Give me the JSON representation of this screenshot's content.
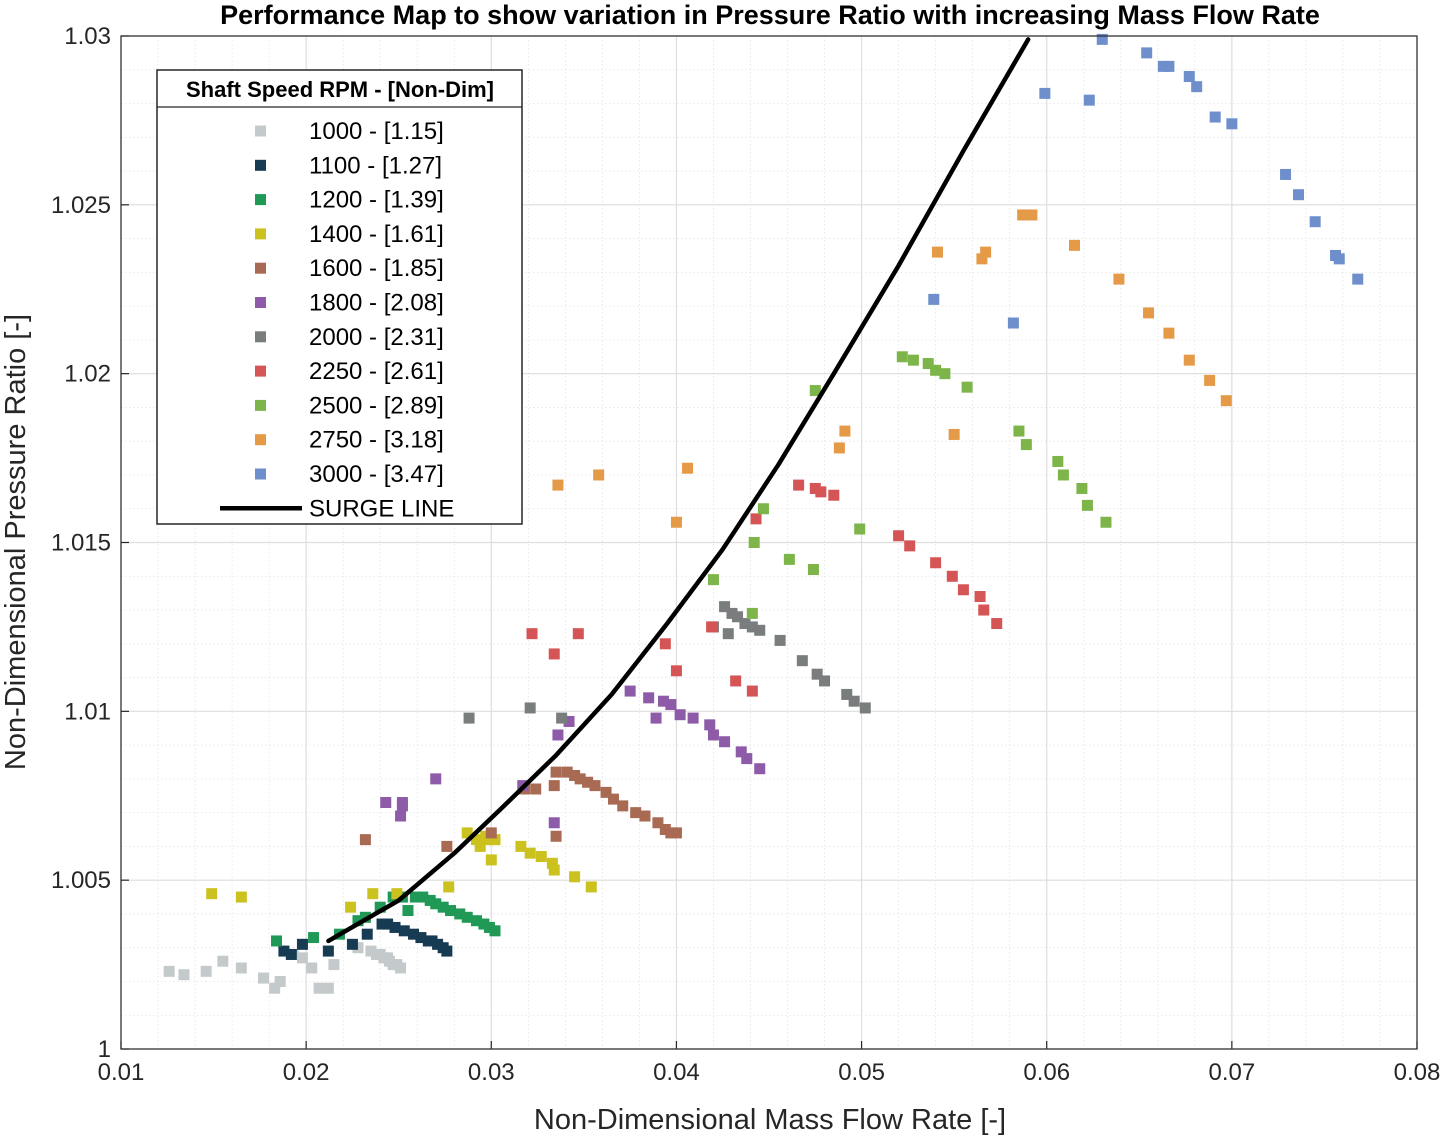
{
  "chart_data": {
    "type": "scatter",
    "title": "Performance Map to show variation in Pressure Ratio with increasing Mass Flow Rate",
    "xlabel": "Non-Dimensional Mass Flow Rate [-]",
    "ylabel": "Non-Dimensional Pressure Ratio [-]",
    "xlim": [
      0.01,
      0.08
    ],
    "ylim": [
      1.0,
      1.03
    ],
    "xticks": [
      0.01,
      0.02,
      0.03,
      0.04,
      0.05,
      0.06,
      0.07,
      0.08
    ],
    "xtick_labels": [
      "0.01",
      "0.02",
      "0.03",
      "0.04",
      "0.05",
      "0.06",
      "0.07",
      "0.08"
    ],
    "yticks": [
      1.0,
      1.005,
      1.01,
      1.015,
      1.02,
      1.025,
      1.03
    ],
    "ytick_labels": [
      "1",
      "1.005",
      "1.01",
      "1.015",
      "1.02",
      "1.025",
      "1.03"
    ],
    "grid": true,
    "minor_grid": true,
    "legend": {
      "title": "Shaft Speed RPM - [Non-Dim]",
      "location": "top-left"
    },
    "series": [
      {
        "name": "1000 - [1.15]",
        "color": "#c4cacb",
        "marker": "square",
        "x": [
          0.0126,
          0.0134,
          0.0146,
          0.0155,
          0.0165,
          0.0177,
          0.0183,
          0.0186,
          0.0193,
          0.0198,
          0.0203,
          0.0207,
          0.0212,
          0.0215,
          0.0228,
          0.0235,
          0.0238,
          0.024,
          0.0242,
          0.0244,
          0.0245,
          0.0247,
          0.0249,
          0.0251
        ],
        "y": [
          1.0023,
          1.0022,
          1.0023,
          1.0026,
          1.0024,
          1.0021,
          1.0018,
          1.002,
          1.0028,
          1.0027,
          1.0024,
          1.0018,
          1.0018,
          1.0025,
          1.003,
          1.0029,
          1.0028,
          1.0028,
          1.0027,
          1.0027,
          1.0026,
          1.0025,
          1.0025,
          1.0024
        ]
      },
      {
        "name": "1100 - [1.27]",
        "color": "#163b52",
        "marker": "square",
        "x": [
          0.0188,
          0.0192,
          0.0198,
          0.0212,
          0.0225,
          0.0233,
          0.0241,
          0.0244,
          0.0248,
          0.0253,
          0.0258,
          0.0262,
          0.0266,
          0.0268,
          0.0271,
          0.0274,
          0.0276
        ],
        "y": [
          1.0029,
          1.0028,
          1.0031,
          1.0029,
          1.0031,
          1.0034,
          1.0037,
          1.0037,
          1.0036,
          1.0035,
          1.0034,
          1.0033,
          1.0032,
          1.0032,
          1.0031,
          1.003,
          1.0029
        ]
      },
      {
        "name": "1200 - [1.39]",
        "color": "#1f9955",
        "marker": "square",
        "x": [
          0.0184,
          0.0204,
          0.0218,
          0.0228,
          0.0232,
          0.024,
          0.0247,
          0.0252,
          0.0255,
          0.0259,
          0.0263,
          0.0267,
          0.027,
          0.0274,
          0.0278,
          0.0283,
          0.0287,
          0.0292,
          0.0296,
          0.0299,
          0.0302
        ],
        "y": [
          1.0032,
          1.0033,
          1.0034,
          1.0038,
          1.0039,
          1.0042,
          1.0045,
          1.0045,
          1.0041,
          1.0045,
          1.0045,
          1.0044,
          1.0043,
          1.0042,
          1.0041,
          1.004,
          1.0039,
          1.0038,
          1.0037,
          1.0036,
          1.0035
        ],
        "drawn_over": true
      },
      {
        "name": "1400 - [1.61]",
        "color": "#cbc11f",
        "marker": "square",
        "x": [
          0.0149,
          0.0165,
          0.0224,
          0.0236,
          0.0249,
          0.0277,
          0.0287,
          0.0292,
          0.0294,
          0.0297,
          0.0299,
          0.0302,
          0.0316,
          0.0321,
          0.0327,
          0.0333,
          0.0334,
          0.0345,
          0.0354,
          0.03
        ],
        "y": [
          1.0046,
          1.0045,
          1.0042,
          1.0046,
          1.0046,
          1.0048,
          1.0064,
          1.0062,
          1.006,
          1.0063,
          1.0062,
          1.0062,
          1.006,
          1.0058,
          1.0057,
          1.0055,
          1.0053,
          1.0051,
          1.0048,
          1.0056
        ]
      },
      {
        "name": "1600 - [1.85]",
        "color": "#a86a52",
        "marker": "square",
        "x": [
          0.0232,
          0.0276,
          0.03,
          0.0318,
          0.0324,
          0.0334,
          0.0335,
          0.0335,
          0.0341,
          0.0345,
          0.0348,
          0.0352,
          0.0356,
          0.0362,
          0.0366,
          0.0371,
          0.0378,
          0.0383,
          0.039,
          0.0394,
          0.0397,
          0.04
        ],
        "y": [
          1.0062,
          1.006,
          1.0064,
          1.0077,
          1.0077,
          1.0078,
          1.0082,
          1.0063,
          1.0082,
          1.0081,
          1.008,
          1.0079,
          1.0078,
          1.0076,
          1.0074,
          1.0072,
          1.007,
          1.0069,
          1.0067,
          1.0065,
          1.0064,
          1.0064
        ]
      },
      {
        "name": "1800 - [2.08]",
        "color": "#8e5ba9",
        "marker": "square",
        "x": [
          0.0243,
          0.0252,
          0.0252,
          0.0251,
          0.027,
          0.0334,
          0.0336,
          0.0342,
          0.0317,
          0.0375,
          0.0385,
          0.0389,
          0.0393,
          0.0397,
          0.0402,
          0.0409,
          0.0418,
          0.042,
          0.0426,
          0.0435,
          0.0438,
          0.0445
        ],
        "y": [
          1.0073,
          1.0073,
          1.0072,
          1.0069,
          1.008,
          1.0067,
          1.0093,
          1.0097,
          1.0078,
          1.0106,
          1.0104,
          1.0098,
          1.0103,
          1.0102,
          1.0099,
          1.0098,
          1.0096,
          1.0093,
          1.0091,
          1.0088,
          1.0086,
          1.0083
        ]
      },
      {
        "name": "2000 - [2.31]",
        "color": "#7a7d7d",
        "marker": "square",
        "x": [
          0.0288,
          0.0321,
          0.0338,
          0.042,
          0.0426,
          0.0428,
          0.043,
          0.0433,
          0.0437,
          0.0441,
          0.0445,
          0.0456,
          0.0468,
          0.0476,
          0.048,
          0.0492,
          0.0496,
          0.0502
        ],
        "y": [
          1.0098,
          1.0101,
          1.0098,
          1.0125,
          1.0131,
          1.0123,
          1.0129,
          1.0128,
          1.0126,
          1.0125,
          1.0124,
          1.0121,
          1.0115,
          1.0111,
          1.0109,
          1.0105,
          1.0103,
          1.0101
        ]
      },
      {
        "name": "2250 - [2.61]",
        "color": "#d55556",
        "marker": "square",
        "x": [
          0.0322,
          0.0334,
          0.0347,
          0.0394,
          0.04,
          0.0419,
          0.0432,
          0.0441,
          0.0443,
          0.0466,
          0.0475,
          0.0478,
          0.0485,
          0.052,
          0.0526,
          0.054,
          0.0549,
          0.0555,
          0.0564,
          0.0566,
          0.0573
        ],
        "y": [
          1.0123,
          1.0117,
          1.0123,
          1.012,
          1.0112,
          1.0125,
          1.0109,
          1.0106,
          1.0157,
          1.0167,
          1.0166,
          1.0165,
          1.0164,
          1.0152,
          1.0149,
          1.0144,
          1.014,
          1.0136,
          1.0134,
          1.013,
          1.0126
        ]
      },
      {
        "name": "2500 - [2.89]",
        "color": "#7db54a",
        "marker": "square",
        "x": [
          0.042,
          0.0441,
          0.0442,
          0.0447,
          0.0461,
          0.0474,
          0.0475,
          0.0499,
          0.0522,
          0.0528,
          0.0536,
          0.054,
          0.0545,
          0.0557,
          0.0585,
          0.0589,
          0.0606,
          0.0609,
          0.0619,
          0.0622,
          0.0632
        ],
        "y": [
          1.0139,
          1.0129,
          1.015,
          1.016,
          1.0145,
          1.0142,
          1.0195,
          1.0154,
          1.0205,
          1.0204,
          1.0203,
          1.0201,
          1.02,
          1.0196,
          1.0183,
          1.0179,
          1.0174,
          1.017,
          1.0166,
          1.0161,
          1.0156
        ]
      },
      {
        "name": "2750 - [3.18]",
        "color": "#e59a47",
        "marker": "square",
        "x": [
          0.0336,
          0.0358,
          0.04,
          0.0406,
          0.0488,
          0.0491,
          0.0541,
          0.055,
          0.0565,
          0.0567,
          0.0587,
          0.0592,
          0.0615,
          0.0639,
          0.0655,
          0.0666,
          0.0677,
          0.0688,
          0.0697
        ],
        "y": [
          1.0167,
          1.017,
          1.0156,
          1.0172,
          1.0178,
          1.0183,
          1.0236,
          1.0182,
          1.0234,
          1.0236,
          1.0247,
          1.0247,
          1.0238,
          1.0228,
          1.0218,
          1.0212,
          1.0204,
          1.0198,
          1.0192
        ]
      },
      {
        "name": "3000 - [3.47]",
        "color": "#6e8fcb",
        "marker": "square",
        "x": [
          0.0539,
          0.0582,
          0.0599,
          0.0623,
          0.063,
          0.0654,
          0.0663,
          0.0666,
          0.0677,
          0.0681,
          0.0691,
          0.07,
          0.0729,
          0.0736,
          0.0745,
          0.0756,
          0.0758,
          0.0768
        ],
        "y": [
          1.0222,
          1.0215,
          1.0283,
          1.0281,
          1.0299,
          1.0295,
          1.0291,
          1.0291,
          1.0288,
          1.0285,
          1.0276,
          1.0274,
          1.0259,
          1.0253,
          1.0245,
          1.0235,
          1.0234,
          1.0228
        ]
      },
      {
        "name": "SURGE LINE",
        "color": "#000000",
        "marker": "line",
        "x": [
          0.0212,
          0.025,
          0.028,
          0.0305,
          0.0335,
          0.0365,
          0.0395,
          0.0425,
          0.0455,
          0.0485,
          0.052,
          0.0555,
          0.059,
          0.0615,
          0.063
        ],
        "y": [
          1.0032,
          1.0044,
          1.0058,
          1.0071,
          1.0087,
          1.0105,
          1.0126,
          1.0148,
          1.0173,
          1.02,
          1.0232,
          1.0266,
          1.03,
          1.0283,
          1.0299
        ]
      }
    ]
  }
}
